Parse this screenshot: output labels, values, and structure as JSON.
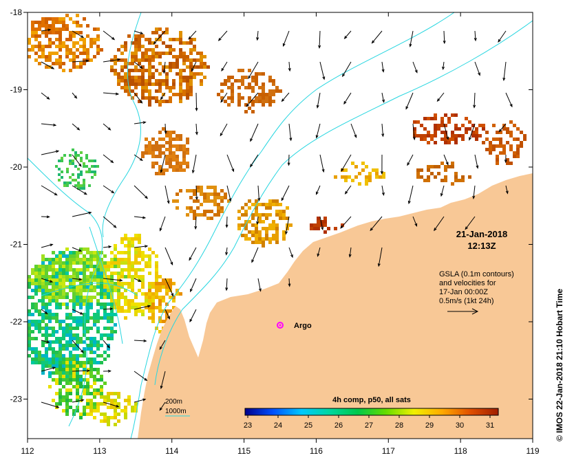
{
  "map": {
    "lon_ticks": [
      "112",
      "113",
      "114",
      "115",
      "116",
      "117",
      "118",
      "119"
    ],
    "lat_ticks": [
      "-18",
      "-19",
      "-20",
      "-21",
      "-22",
      "-23"
    ],
    "land_color": "#f8c896",
    "contour_color": "#27d6e0"
  },
  "timestamp": {
    "date": "21-Jan-2018",
    "time": "12:13Z"
  },
  "info_lines": [
    "GSLA (0.1m contours)",
    "and velocities for",
    "17-Jan 00:00Z",
    "0.5m/s (1kt 24h)"
  ],
  "legend": {
    "line1": "200m",
    "line2": "1000m"
  },
  "colorbar": {
    "title": "4h comp, p50, all sats",
    "labels": [
      "23",
      "24",
      "25",
      "26",
      "27",
      "28",
      "29",
      "30",
      "31"
    ],
    "colors": [
      "#00008b",
      "#0050ff",
      "#00c8ff",
      "#00d7a0",
      "#00c84b",
      "#64dc00",
      "#f0f000",
      "#ffaa00",
      "#e05000",
      "#a01e00"
    ]
  },
  "marker": {
    "label": "Argo",
    "color": "#ff00ff"
  },
  "credit": "© IMOS 22-Jan-2018 21:10 Hobart Time"
}
